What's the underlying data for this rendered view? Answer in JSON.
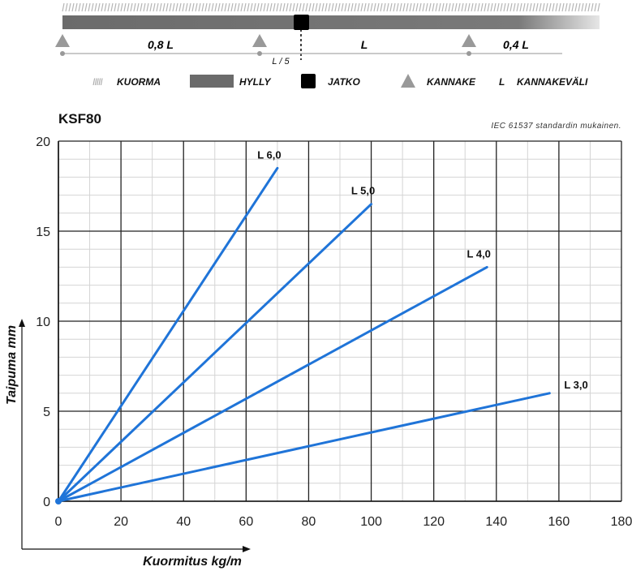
{
  "diagram": {
    "spans": [
      "0,8 L",
      "L",
      "0,4 L"
    ],
    "joint_offset": "L / 5"
  },
  "legend": {
    "load": {
      "marker": "IIIII",
      "label": "KUORMA",
      "icon": "hatch-icon"
    },
    "shelf": {
      "label": "HYLLY",
      "icon": "shelf-bar-icon",
      "color": "#6b6b6b"
    },
    "joint": {
      "label": "JATKO",
      "icon": "black-square-icon",
      "color": "#000000"
    },
    "bracket": {
      "label": "KANNAKE",
      "icon": "triangle-icon",
      "color": "#999999"
    },
    "span": {
      "marker": "L",
      "label": "KANNAKEVÄLI"
    }
  },
  "chart_title": "KSF80",
  "standard_note": "IEC 61537 standardin mukainen.",
  "chart_data": {
    "type": "line",
    "xlabel": "Kuormitus kg/m",
    "ylabel": "Taipuma mm",
    "xlim": [
      0,
      180
    ],
    "ylim": [
      0,
      20
    ],
    "xticks": [
      "0",
      "20",
      "40",
      "60",
      "80",
      "100",
      "120",
      "140",
      "160",
      "180"
    ],
    "yticks": [
      "0",
      "5",
      "10",
      "15",
      "20"
    ],
    "grid": true,
    "line_color": "#1f74d8",
    "series": [
      {
        "name": "L 6,0",
        "x": [
          0,
          70
        ],
        "y": [
          0,
          18.5
        ]
      },
      {
        "name": "L 5,0",
        "x": [
          0,
          100
        ],
        "y": [
          0,
          16.5
        ]
      },
      {
        "name": "L 4,0",
        "x": [
          0,
          137
        ],
        "y": [
          0,
          13.0
        ]
      },
      {
        "name": "L 3,0",
        "x": [
          0,
          157
        ],
        "y": [
          0,
          6.0
        ]
      }
    ]
  }
}
